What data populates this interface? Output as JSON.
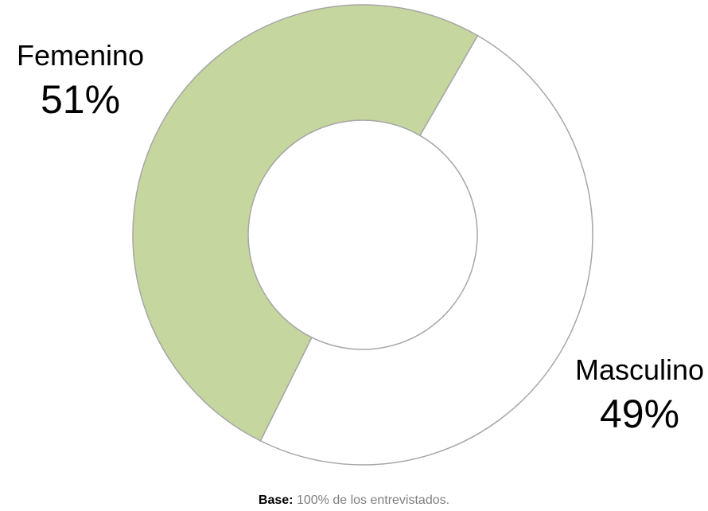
{
  "chart_data": {
    "type": "pie",
    "style": "donut",
    "categories": [
      "Femenino",
      "Masculino"
    ],
    "values": [
      51,
      49
    ],
    "value_labels": [
      "51%",
      "49%"
    ],
    "colors": [
      "#c5d69f",
      "#ffffff"
    ],
    "edge_color": "#a6a6a6"
  },
  "footnote": {
    "label": "Base:",
    "text": "100% de los entrevistados."
  }
}
